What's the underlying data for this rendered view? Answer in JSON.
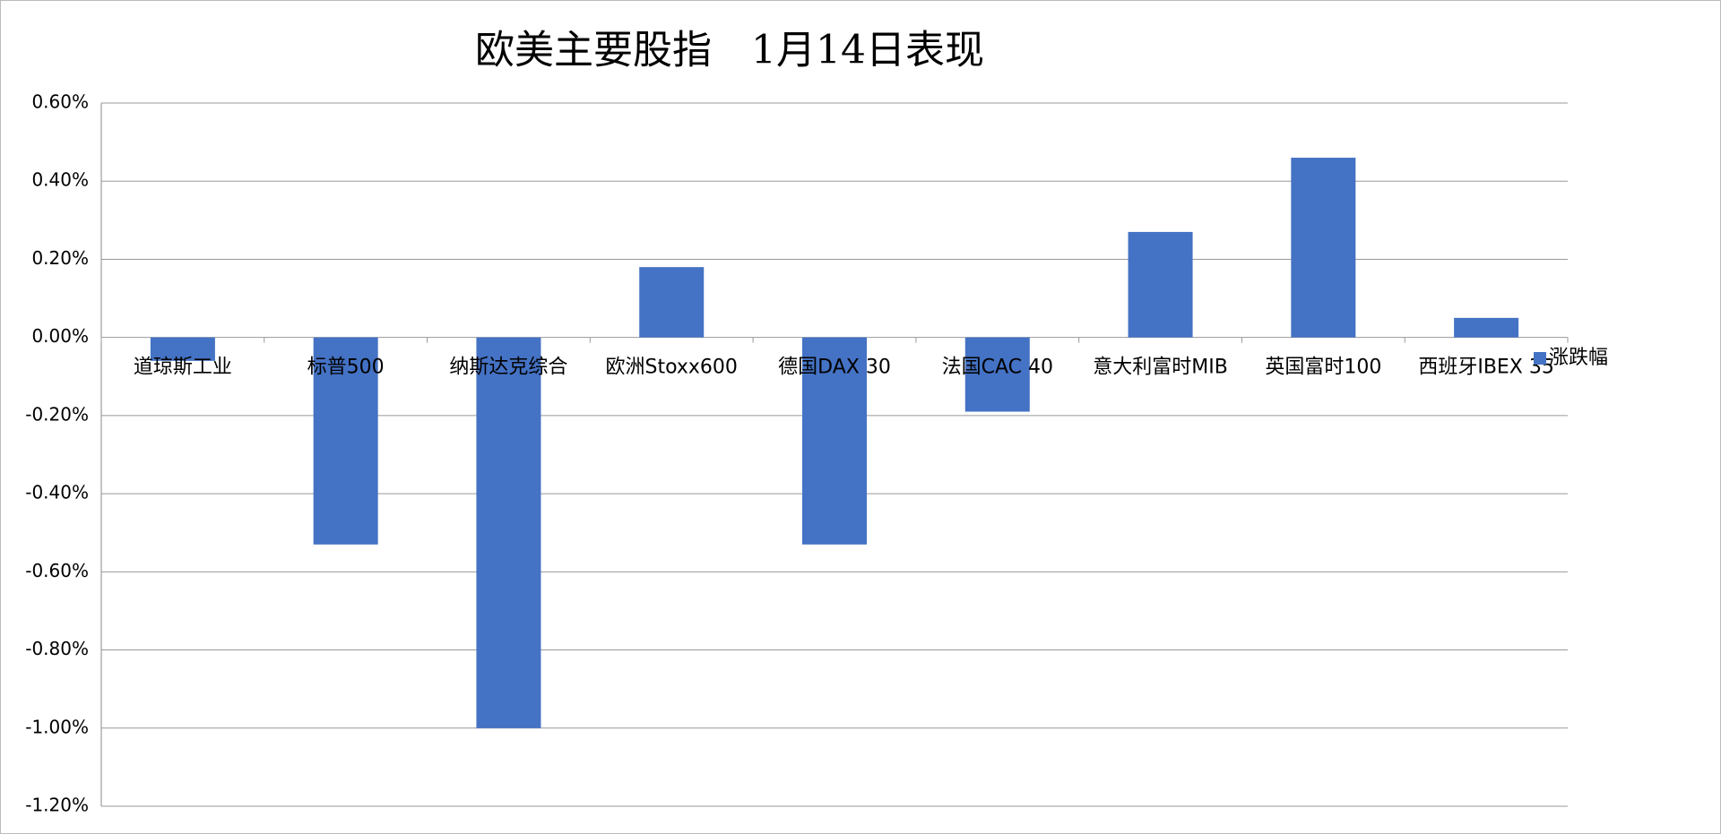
{
  "chart_data": {
    "type": "bar",
    "title": "欧美主要股指　1月14日表现",
    "categories": [
      "道琼斯工业",
      "标普500",
      "纳斯达克综合",
      "欧洲Stoxx600",
      "德国DAX 30",
      "法国CAC 40",
      "意大利富时MIB",
      "英国富时100",
      "西班牙IBEX 35"
    ],
    "series": [
      {
        "name": "涨跌幅",
        "color": "#4472c4",
        "values": [
          -0.06,
          -0.53,
          -1.0,
          0.18,
          -0.53,
          -0.19,
          0.27,
          0.46,
          0.05
        ]
      }
    ],
    "ylim": [
      -1.2,
      0.6
    ],
    "yticks": [
      {
        "value": -1.2,
        "label": "-1.20%"
      },
      {
        "value": -1.0,
        "label": "-1.00%"
      },
      {
        "value": -0.8,
        "label": "-0.80%"
      },
      {
        "value": -0.6,
        "label": "-0.60%"
      },
      {
        "value": -0.4,
        "label": "-0.40%"
      },
      {
        "value": -0.2,
        "label": "-0.20%"
      },
      {
        "value": 0,
        "label": "0.00%"
      },
      {
        "value": 0.2,
        "label": "0.20%"
      },
      {
        "value": 0.4,
        "label": "0.40%"
      },
      {
        "value": 0.6,
        "label": "0.60%"
      }
    ],
    "grid": true,
    "legend": "right"
  }
}
